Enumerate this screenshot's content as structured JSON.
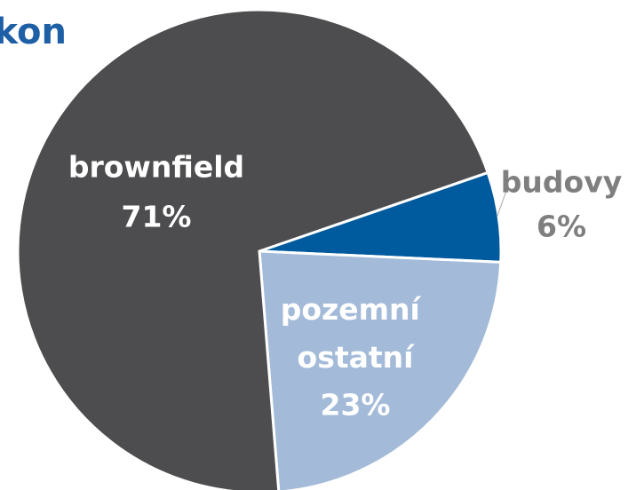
{
  "chart_data": {
    "type": "pie",
    "title": "kon",
    "categories": [
      "budovy",
      "pozemní ostatní",
      "brownfield"
    ],
    "values": [
      6,
      23,
      71
    ],
    "value_labels": [
      "6%",
      "23%",
      "71%"
    ],
    "colors": [
      "#005a9e",
      "#a3bbd9",
      "#4d4d4f"
    ]
  }
}
